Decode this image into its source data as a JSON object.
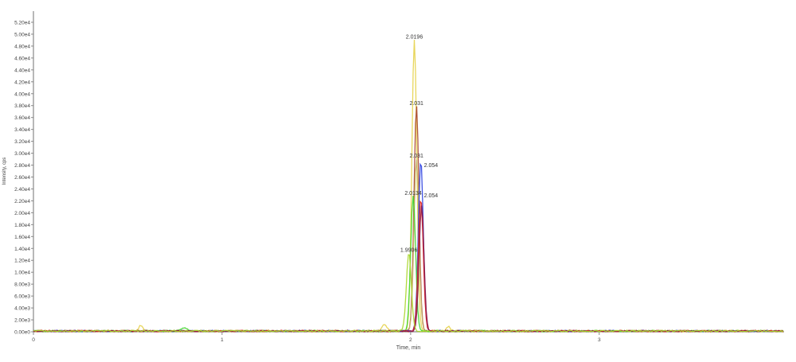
{
  "chart_data": {
    "type": "line",
    "title": "",
    "xlabel": "Time, min",
    "ylabel": "Intensity, cps",
    "xlim": [
      0,
      3.98
    ],
    "ylim": [
      0,
      52000
    ],
    "grid": false,
    "x_ticks": [
      "0",
      "1",
      "2",
      "3"
    ],
    "x_tick_values": [
      0,
      1,
      2,
      3
    ],
    "y_ticks": [
      "0.00e0",
      "2.00e3",
      "4.00e3",
      "6.00e3",
      "8.00e3",
      "1.00e4",
      "1.20e4",
      "1.40e4",
      "1.60e4",
      "1.80e4",
      "2.00e4",
      "2.20e4",
      "2.40e4",
      "2.60e4",
      "2.80e4",
      "3.00e4",
      "3.20e4",
      "3.40e4",
      "3.60e4",
      "3.80e4",
      "4.00e4",
      "4.20e4",
      "4.40e4",
      "4.60e4",
      "4.80e4",
      "5.00e4",
      "5.20e4"
    ],
    "y_tick_values": [
      0,
      2000,
      4000,
      6000,
      8000,
      10000,
      12000,
      14000,
      16000,
      18000,
      20000,
      22000,
      24000,
      26000,
      28000,
      30000,
      32000,
      34000,
      36000,
      38000,
      40000,
      42000,
      44000,
      46000,
      48000,
      50000,
      52000
    ],
    "series": [
      {
        "color": "#e6d24a",
        "peak_x": 2.0196,
        "peak_y": 49000,
        "label": "2.0196"
      },
      {
        "color": "#a8452e",
        "peak_x": 2.031,
        "peak_y": 37800,
        "label": "2.031"
      },
      {
        "color": "#c9b96a",
        "peak_x": 2.031,
        "peak_y": 29000,
        "label": "2.031"
      },
      {
        "color": "#2a3fe0",
        "peak_x": 2.054,
        "peak_y": 28600,
        "label": "2.054"
      },
      {
        "color": "#3fd62a",
        "peak_x": 2.0134,
        "peak_y": 22700,
        "label": "2.0134"
      },
      {
        "color": "#e02020",
        "peak_x": 2.054,
        "peak_y": 22300,
        "label": "2.054"
      },
      {
        "color": "#8a1a4a",
        "peak_x": 2.058,
        "peak_y": 21000,
        "label": ""
      },
      {
        "color": "#a8d62a",
        "peak_x": 1.9906,
        "peak_y": 13200,
        "label": "1.9906"
      }
    ]
  }
}
